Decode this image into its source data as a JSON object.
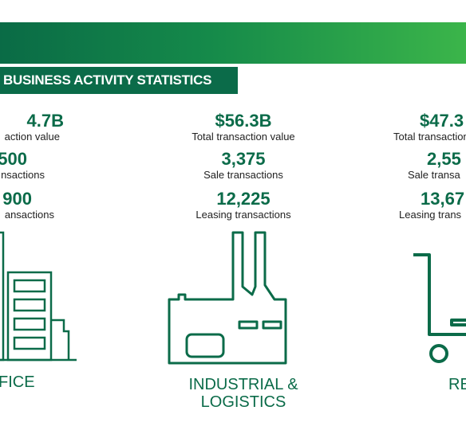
{
  "header": {
    "title": "BUSINESS ACTIVITY STATISTICS"
  },
  "colors": {
    "accent": "#0b6b49",
    "gradient_start": "#0a6b46",
    "gradient_end": "#3bb54a"
  },
  "columns": [
    {
      "category": "FICE",
      "stats": [
        {
          "value": "4.7B",
          "label": "action value"
        },
        {
          "value": "500",
          "label": "nsactions"
        },
        {
          "value": "900",
          "label": "ansactions"
        }
      ],
      "icon": "office-building-icon"
    },
    {
      "category_line1": "INDUSTRIAL &",
      "category_line2": "LOGISTICS",
      "stats": [
        {
          "value": "$56.3B",
          "label": "Total transaction value"
        },
        {
          "value": "3,375",
          "label": "Sale transactions"
        },
        {
          "value": "12,225",
          "label": "Leasing transactions"
        }
      ],
      "icon": "factory-icon"
    },
    {
      "category": "RE",
      "stats": [
        {
          "value": "$47.3",
          "label": "Total transaction"
        },
        {
          "value": "2,55",
          "label": "Sale transa"
        },
        {
          "value": "13,67",
          "label": "Leasing trans"
        }
      ],
      "icon": "shopping-cart-icon"
    }
  ]
}
